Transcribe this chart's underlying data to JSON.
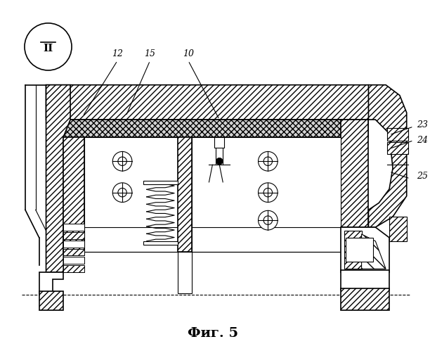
{
  "title": "Фиг. 5",
  "bg_color": "#ffffff",
  "line_color": "#000000",
  "fig_width": 6.12,
  "fig_height": 4.99,
  "dpi": 100
}
